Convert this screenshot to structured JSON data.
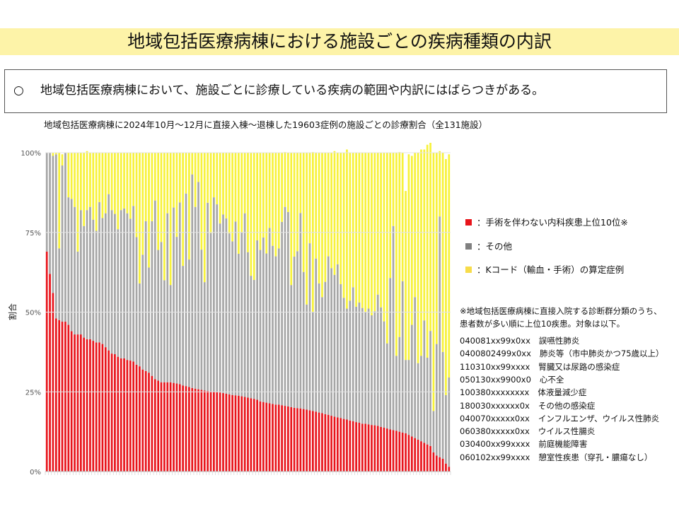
{
  "page": {
    "title": "地域包括医療病棟における施設ごとの疾病種類の内訳",
    "summary_bullet": "○",
    "summary": "地域包括医療病棟において、施設ごとに診療している疾病の範囲や内訳にはばらつきがある。"
  },
  "chart_data": {
    "type": "bar",
    "stacked": true,
    "title": "地域包括医療病棟に2024年10月～12月に直接入棟～退棟した19603症例の施設ごとの診療割合（全131施設）",
    "xlabel": "",
    "ylabel": "割合",
    "ylim": [
      0,
      100
    ],
    "yticks": [
      "0%",
      "25%",
      "50%",
      "75%",
      "100%"
    ],
    "category_count": 131,
    "series": [
      {
        "name": "：手術を伴わない内科疾患上位10位※",
        "color": "#e8141b",
        "values": [
          69,
          62,
          56,
          48,
          47.5,
          47,
          47,
          46,
          44,
          43,
          43,
          43,
          42,
          41.5,
          41.5,
          41,
          40.5,
          40.5,
          40,
          39,
          38,
          37,
          36.8,
          36,
          35.5,
          35.5,
          35,
          34.8,
          34.5,
          33.5,
          33,
          32,
          31.5,
          31,
          30,
          29,
          28.5,
          28,
          28,
          28,
          28,
          27.8,
          27.6,
          27.4,
          27,
          26.8,
          26.5,
          26.2,
          26,
          25.8,
          25.6,
          25.4,
          25.3,
          25.1,
          25,
          24.9,
          24.8,
          24.6,
          24.4,
          24.2,
          24,
          23.9,
          23.8,
          23.6,
          23.4,
          23.2,
          23,
          22.8,
          22.5,
          22,
          21.8,
          21.6,
          21.4,
          21.2,
          21,
          21,
          20.8,
          20.6,
          20.4,
          20.2,
          20,
          19.9,
          19.8,
          19.6,
          19.4,
          19.2,
          19,
          18.8,
          18.5,
          18.3,
          18,
          17.8,
          17.5,
          17.2,
          17,
          16.8,
          16.5,
          16.3,
          16,
          15.8,
          15.5,
          15.3,
          15,
          15,
          14.8,
          14.6,
          14.5,
          14.3,
          14,
          13.8,
          13.5,
          13.2,
          13,
          12.8,
          12.5,
          12.2,
          12,
          11.5,
          11,
          10.5,
          10,
          9.5,
          9,
          8.5,
          8,
          6,
          5,
          4.5,
          4,
          2.5,
          1.5
        ]
      },
      {
        "name": "：その他",
        "color": "#a6a6a6",
        "values": [
          31,
          38,
          43,
          51.5,
          22.5,
          49,
          53,
          40,
          41.5,
          40,
          26,
          39,
          35,
          40.5,
          41.5,
          38,
          35,
          44,
          39.5,
          42,
          49,
          45,
          44,
          40,
          46.5,
          47,
          46,
          44.5,
          48.8,
          40,
          26,
          36,
          47,
          33,
          48.5,
          56,
          41,
          44,
          32,
          53,
          30.5,
          55,
          46,
          57,
          37.5,
          60.4,
          40,
          67,
          57,
          65,
          44,
          34,
          59,
          49.7,
          61,
          58.9,
          53,
          56,
          55,
          50.5,
          48.2,
          54.5,
          44.5,
          51.4,
          57.6,
          45.6,
          38.4,
          37.3,
          50,
          47.5,
          51.6,
          46.8,
          55,
          49.6,
          46.5,
          49,
          57.5,
          62.4,
          61,
          38.3,
          47.4,
          49.2,
          61.3,
          43,
          33,
          52.4,
          31.1,
          48,
          40.5,
          36.4,
          41.5,
          49.7,
          46.3,
          44.5,
          48,
          42,
          38,
          34.8,
          37.6,
          42,
          36.2,
          37.7,
          36.3,
          35,
          36.3,
          34.4,
          35.8,
          41.2,
          37.5,
          33.3,
          26.7,
          47.5,
          64,
          23.5,
          29.7,
          47.5,
          23,
          23.5,
          35,
          44.2,
          24,
          26.8,
          38.4,
          27.2,
          36.1,
          13,
          35,
          75.5,
          33.5,
          21.5,
          28,
          31.5
        ]
      },
      {
        "name": "：Kコード（輸血・手術）の算定症例",
        "color": "#f7f23a",
        "values": [
          0,
          0,
          1,
          0.5,
          30,
          3.5,
          0,
          14,
          14.5,
          17,
          31,
          18,
          23,
          18.5,
          17,
          21,
          24.5,
          15.5,
          20.5,
          19,
          13,
          18,
          19.2,
          24,
          18,
          17.5,
          19,
          20.7,
          16.7,
          26.5,
          41,
          32,
          21.5,
          36,
          21.5,
          15,
          30.5,
          28,
          40,
          19,
          41.5,
          17.2,
          26.4,
          15.6,
          35.5,
          12.8,
          33.5,
          6.8,
          17,
          9.2,
          30.4,
          40.6,
          15.7,
          25.2,
          14,
          16.2,
          22.2,
          19.4,
          20.6,
          25.3,
          27.8,
          21.6,
          31.7,
          25,
          19,
          31.2,
          38.6,
          39.9,
          27.5,
          30.5,
          26.6,
          31.6,
          23.6,
          29.2,
          32.5,
          30,
          21.7,
          17.2,
          18.6,
          41.5,
          32.6,
          30.9,
          18.9,
          37.4,
          47.6,
          28.4,
          50.1,
          33.2,
          41,
          45.3,
          40.5,
          32.5,
          36.2,
          38.8,
          35,
          41.2,
          45.5,
          49.9,
          46.4,
          42.2,
          48.3,
          47,
          48.7,
          50,
          48.9,
          51,
          49.7,
          44.5,
          48.5,
          52.9,
          59.8,
          39.3,
          23,
          63.7,
          58,
          40.3,
          53,
          64.5,
          53,
          45.3,
          66,
          64.7,
          53.6,
          66.8,
          59,
          81,
          60,
          20.5,
          62.5,
          74,
          70,
          66
        ]
      }
    ]
  },
  "note": {
    "line1": "※地域包括医療病棟に直接入院する診断群分類のうち、",
    "line2": "患者数が多い順に上位10疾患。対象は以下。"
  },
  "codes": [
    {
      "code": "040081xx99x0xx",
      "disease": "誤嚥性肺炎"
    },
    {
      "code": "040080249 9x0xx",
      "disease": "肺炎等（市中肺炎かつ75歳以上）"
    },
    {
      "code": "110310xx99xxxx",
      "disease": "腎臓又は尿路の感染症"
    },
    {
      "code": "050130xx9900x0",
      "disease": "心不全"
    },
    {
      "code": "100380xxxxxxxx",
      "disease": "体液量減少症"
    },
    {
      "code": "180030xxxxxx0x",
      "disease": "その他の感染症"
    },
    {
      "code": "040070xxxxx0xx",
      "disease": "インフルエンザ、ウイルス性肺炎"
    },
    {
      "code": "060380xxxxx0xx",
      "disease": "ウイルス性腸炎"
    },
    {
      "code": "030400xx99xxxx",
      "disease": "前庭機能障害"
    },
    {
      "code": "060102xx99xxxx",
      "disease": "憩室性疾患（穿孔・膿瘍なし）"
    }
  ]
}
